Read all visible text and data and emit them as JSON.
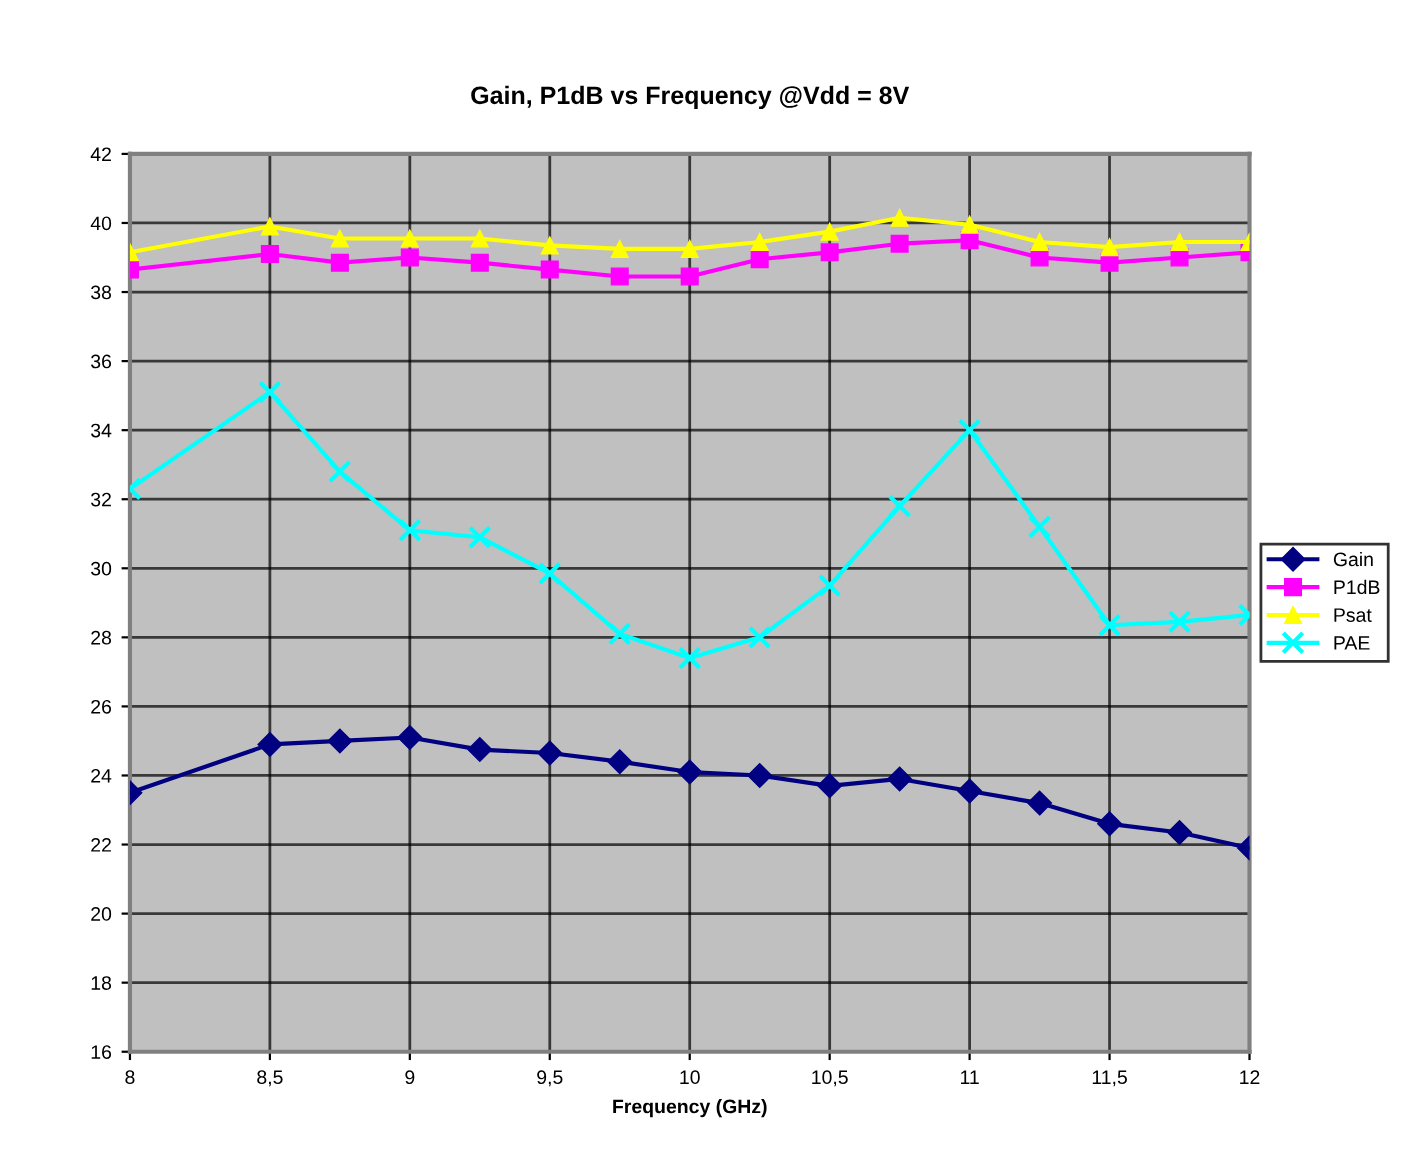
{
  "chart_data": {
    "type": "line",
    "title": "Gain, P1dB vs Frequency @Vdd = 8V",
    "xlabel": "Frequency (GHz)",
    "x": [
      8,
      8.5,
      8.75,
      9,
      9.25,
      9.5,
      9.75,
      10,
      10.25,
      10.5,
      10.75,
      11,
      11.25,
      11.5,
      11.75,
      12
    ],
    "series": [
      {
        "name": "Gain",
        "color": "#000080",
        "marker": "diamond",
        "values": [
          23.5,
          24.9,
          25.0,
          25.1,
          24.75,
          24.65,
          24.4,
          24.1,
          24.0,
          23.7,
          23.9,
          23.55,
          23.2,
          22.6,
          22.35,
          21.9
        ]
      },
      {
        "name": "P1dB",
        "color": "#ff00ff",
        "marker": "square",
        "values": [
          38.65,
          39.1,
          38.85,
          39.0,
          38.85,
          38.65,
          38.45,
          38.45,
          38.95,
          39.15,
          39.4,
          39.5,
          39.0,
          38.85,
          39.0,
          39.15
        ]
      },
      {
        "name": "Psat",
        "color": "#ffff00",
        "marker": "triangle",
        "values": [
          39.15,
          39.9,
          39.55,
          39.55,
          39.55,
          39.35,
          39.25,
          39.25,
          39.45,
          39.75,
          40.15,
          39.95,
          39.45,
          39.3,
          39.45,
          39.45
        ]
      },
      {
        "name": "PAE",
        "color": "#00ffff",
        "marker": "cross",
        "values": [
          32.3,
          35.1,
          32.8,
          31.1,
          30.9,
          29.85,
          28.1,
          27.4,
          28.0,
          29.5,
          31.8,
          34.0,
          31.2,
          28.35,
          28.45,
          28.65
        ]
      }
    ],
    "xlim": [
      8,
      12
    ],
    "ylim": [
      16,
      42
    ],
    "xticks": [
      8,
      {
        "value": 8.5,
        "label": "8,5"
      },
      9,
      {
        "value": 9.5,
        "label": "9,5"
      },
      10,
      {
        "value": 10.5,
        "label": "10,5"
      },
      11,
      {
        "value": 11.5,
        "label": "11,5"
      },
      12
    ],
    "yticks": [
      16,
      18,
      20,
      22,
      24,
      26,
      28,
      30,
      32,
      34,
      36,
      38,
      40,
      42
    ],
    "grid": true,
    "legend": "right",
    "line_style": "solid"
  }
}
